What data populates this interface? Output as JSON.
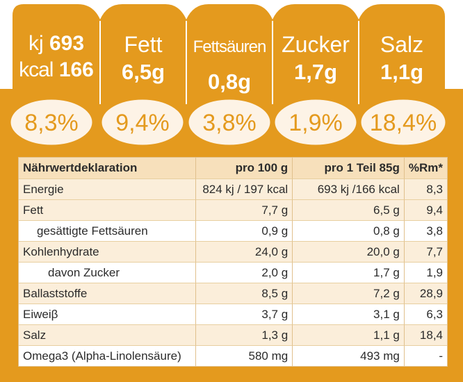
{
  "colors": {
    "accent": "#e49a1e",
    "text": "#2b2b2b",
    "row_shade": "#fbeeda"
  },
  "badges": [
    {
      "line1_unit": "kj",
      "line1_value": "693",
      "line2_unit": "kcal",
      "line2_value": "166",
      "percent": "8,3%"
    },
    {
      "label": "Fett",
      "value": "6,5g",
      "percent": "9,4%"
    },
    {
      "label": "Fettsäuren",
      "value": "0,8g",
      "percent": "3,8%"
    },
    {
      "label": "Zucker",
      "value": "1,7g",
      "percent": "1,9%"
    },
    {
      "label": "Salz",
      "value": "1,1g",
      "percent": "18,4%"
    }
  ],
  "table": {
    "headers": [
      "Nährwertdeklaration",
      "pro 100 g",
      "pro 1 Teil 85g",
      "%Rm*"
    ],
    "rows": [
      {
        "name": "Energie",
        "per100": "824 kj  / 197 kcal",
        "perPortion": "693 kj  /166 kcal",
        "rm": "8,3"
      },
      {
        "name": "Fett",
        "per100": "7,7 g",
        "perPortion": "6,5 g",
        "rm": "9,4"
      },
      {
        "name": "gesättigte Fettsäuren",
        "per100": "0,9 g",
        "perPortion": "0,8 g",
        "rm": "3,8"
      },
      {
        "name": "Kohlenhydrate",
        "per100": "24,0 g",
        "perPortion": "20,0 g",
        "rm": "7,7"
      },
      {
        "name": "davon Zucker",
        "per100": "2,0 g",
        "perPortion": "1,7 g",
        "rm": "1,9"
      },
      {
        "name": "Ballaststoffe",
        "per100": "8,5 g",
        "perPortion": "7,2 g",
        "rm": "28,9"
      },
      {
        "name": "Eiweiβ",
        "per100": "3,7 g",
        "perPortion": "3,1 g",
        "rm": "6,3"
      },
      {
        "name": "Salz",
        "per100": "1,3 g",
        "perPortion": "1,1 g",
        "rm": "18,4"
      },
      {
        "name": "Omega3 (Alpha-Linolensäure)",
        "per100": "580 mg",
        "perPortion": "493 mg",
        "rm": "-"
      }
    ]
  }
}
